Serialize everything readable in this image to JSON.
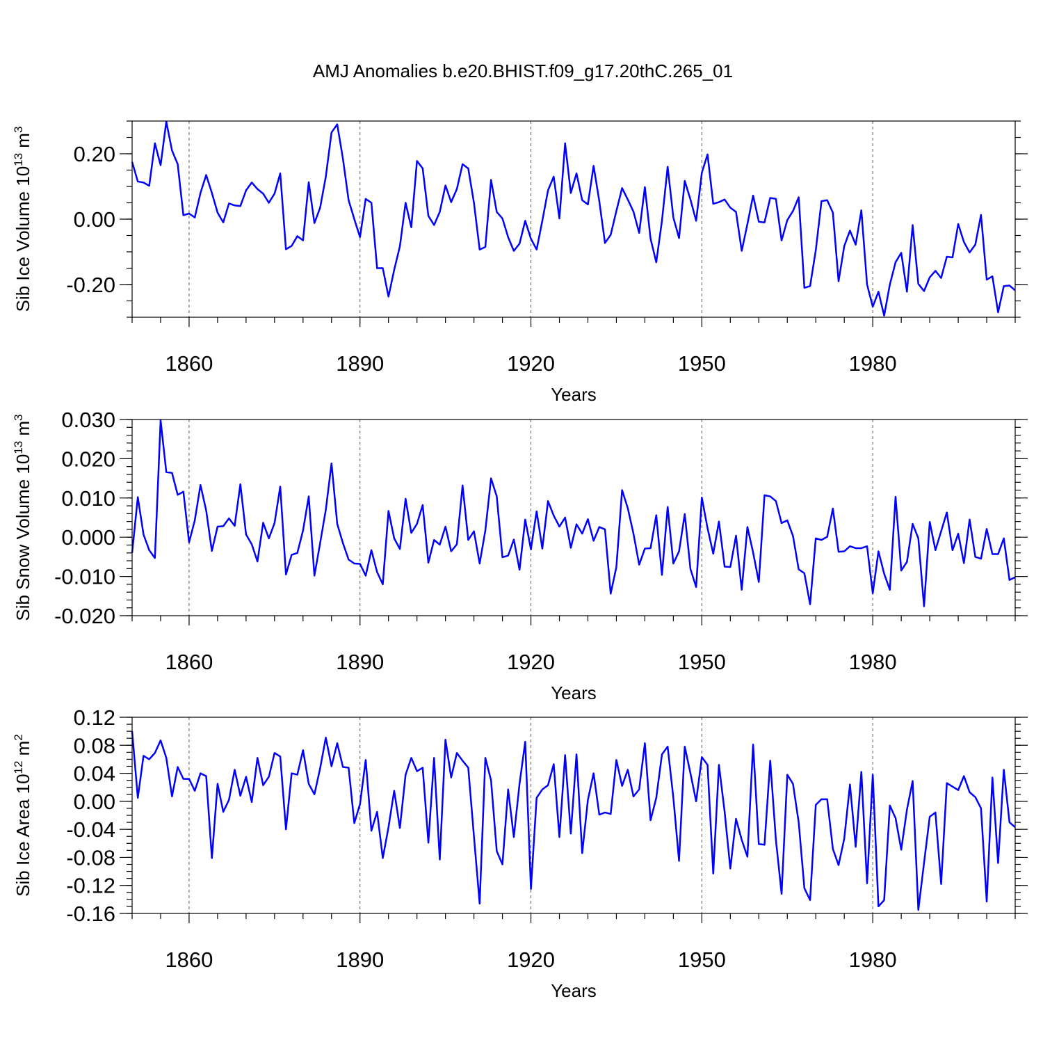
{
  "title": "AMJ Anomalies b.e20.BHIST.f09_g17.20thC.265_01",
  "colors": {
    "line": "#0000ff",
    "axis": "#000000",
    "grid": "#555555"
  },
  "chart_data": [
    {
      "type": "line",
      "ylabel_main": "Sib Ice Volume 10",
      "ylabel_sup": "13",
      "ylabel_unit": " m",
      "ylabel_unit_sup": "3",
      "xlabel": "Years",
      "xlim": [
        1850,
        2005
      ],
      "ylim": [
        -0.3,
        0.3
      ],
      "xticks": [
        1860,
        1890,
        1920,
        1950,
        1980
      ],
      "xtick_labels": [
        "1860",
        "1890",
        "1920",
        "1950",
        "1980"
      ],
      "yticks": [
        -0.2,
        0.0,
        0.2
      ],
      "ytick_labels": [
        "-0.20",
        "0.00",
        "0.20"
      ],
      "yminor_step": 0.05,
      "x_start": 1850,
      "values": [
        0.175,
        0.115,
        0.112,
        0.102,
        0.232,
        0.165,
        0.298,
        0.21,
        0.168,
        0.012,
        0.017,
        0.005,
        0.08,
        0.135,
        0.08,
        0.02,
        -0.01,
        0.048,
        0.042,
        0.04,
        0.088,
        0.112,
        0.092,
        0.078,
        0.05,
        0.078,
        0.14,
        -0.092,
        -0.082,
        -0.052,
        -0.065,
        0.113,
        -0.012,
        0.035,
        0.13,
        0.265,
        0.29,
        0.185,
        0.058,
        0.0,
        -0.055,
        0.062,
        0.05,
        -0.15,
        -0.15,
        -0.237,
        -0.155,
        -0.083,
        0.05,
        -0.025,
        0.178,
        0.155,
        0.01,
        -0.018,
        0.022,
        0.103,
        0.052,
        0.092,
        0.168,
        0.155,
        0.05,
        -0.093,
        -0.085,
        0.12,
        0.022,
        0.002,
        -0.055,
        -0.097,
        -0.075,
        -0.005,
        -0.06,
        -0.093,
        -0.005,
        0.088,
        0.13,
        0.002,
        0.232,
        0.08,
        0.14,
        0.058,
        0.045,
        0.163,
        0.055,
        -0.073,
        -0.048,
        0.025,
        0.095,
        0.06,
        0.023,
        -0.042,
        0.098,
        -0.06,
        -0.132,
        -0.005,
        0.16,
        0.005,
        -0.058,
        0.117,
        0.06,
        -0.005,
        0.142,
        0.198,
        0.047,
        0.052,
        0.06,
        0.035,
        0.022,
        -0.097,
        -0.015,
        0.072,
        -0.008,
        -0.01,
        0.065,
        0.062,
        -0.065,
        -0.003,
        0.025,
        0.067,
        -0.21,
        -0.205,
        -0.095,
        0.055,
        0.058,
        0.02,
        -0.19,
        -0.082,
        -0.035,
        -0.078,
        0.027,
        -0.2,
        -0.268,
        -0.222,
        -0.295,
        -0.2,
        -0.132,
        -0.103,
        -0.222,
        -0.018,
        -0.198,
        -0.22,
        -0.178,
        -0.158,
        -0.18,
        -0.115,
        -0.117,
        -0.015,
        -0.07,
        -0.102,
        -0.078,
        0.013,
        -0.185,
        -0.175,
        -0.285,
        -0.205,
        -0.203,
        -0.218
      ]
    },
    {
      "type": "line",
      "ylabel_main": "Sib Snow Volume 10",
      "ylabel_sup": "13",
      "ylabel_unit": " m",
      "ylabel_unit_sup": "3",
      "xlabel": "Years",
      "xlim": [
        1850,
        2005
      ],
      "ylim": [
        -0.02,
        0.03
      ],
      "xticks": [
        1860,
        1890,
        1920,
        1950,
        1980
      ],
      "xtick_labels": [
        "1860",
        "1890",
        "1920",
        "1950",
        "1980"
      ],
      "yticks": [
        -0.02,
        -0.01,
        0.0,
        0.01,
        0.02,
        0.03
      ],
      "ytick_labels": [
        "-0.020",
        "-0.010",
        "0.000",
        "0.010",
        "0.020",
        "0.030"
      ],
      "yminor_step": 0.002,
      "x_start": 1850,
      "values": [
        -0.004,
        0.0102,
        0.0007,
        -0.0033,
        -0.0053,
        0.0298,
        0.0166,
        0.0164,
        0.0108,
        0.0116,
        -0.0013,
        0.0043,
        0.0133,
        0.0068,
        -0.0035,
        0.0027,
        0.0028,
        0.0048,
        0.0029,
        0.0135,
        0.0007,
        -0.0018,
        -0.0062,
        0.0037,
        -0.0003,
        0.0036,
        0.0129,
        -0.0095,
        -0.0045,
        -0.004,
        0.0017,
        0.0104,
        -0.0098,
        -0.0015,
        0.007,
        0.0188,
        0.0034,
        -0.0015,
        -0.0057,
        -0.0067,
        -0.0068,
        -0.0098,
        -0.0033,
        -0.0089,
        -0.012,
        0.0067,
        -0.0003,
        -0.003,
        0.0098,
        0.0011,
        0.0034,
        0.0082,
        -0.0065,
        -0.0007,
        -0.0019,
        0.0027,
        -0.0036,
        -0.0018,
        0.0132,
        -0.0007,
        0.0015,
        -0.0067,
        0.0017,
        0.015,
        0.0104,
        -0.0051,
        -0.0047,
        -0.0006,
        -0.0083,
        0.0045,
        -0.0031,
        0.0066,
        -0.0029,
        0.0092,
        0.0055,
        0.0027,
        0.005,
        -0.0027,
        0.0033,
        0.0009,
        0.0046,
        -0.0009,
        0.0026,
        0.002,
        -0.0144,
        -0.0076,
        0.012,
        0.0074,
        0.0009,
        -0.007,
        -0.0029,
        -0.0028,
        0.0056,
        -0.0096,
        0.0077,
        -0.0067,
        -0.0036,
        0.0059,
        -0.0081,
        -0.0127,
        0.0101,
        0.0023,
        -0.0042,
        0.004,
        -0.0075,
        -0.0076,
        0.0004,
        -0.0134,
        0.0026,
        -0.0039,
        -0.0114,
        0.0107,
        0.0104,
        0.0092,
        0.0036,
        0.0043,
        0.0003,
        -0.0082,
        -0.0092,
        -0.0171,
        -0.0003,
        -0.0007,
        0.0001,
        0.0073,
        -0.0037,
        -0.0036,
        -0.0023,
        -0.0028,
        -0.0028,
        -0.0023,
        -0.0143,
        -0.0036,
        -0.0093,
        -0.0134,
        0.0103,
        -0.0085,
        -0.0063,
        0.0034,
        -0.0003,
        -0.0176,
        0.0039,
        -0.0033,
        0.0015,
        0.0063,
        -0.0033,
        0.0009,
        -0.0066,
        0.0045,
        -0.005,
        -0.0055,
        0.0021,
        -0.0043,
        -0.0043,
        -0.0003,
        -0.0109,
        -0.0102
      ]
    },
    {
      "type": "line",
      "ylabel_main": "Sib Ice Area 10",
      "ylabel_sup": "12",
      "ylabel_unit": " m",
      "ylabel_unit_sup": "2",
      "xlabel": "Years",
      "xlim": [
        1850,
        2005
      ],
      "ylim": [
        -0.16,
        0.12
      ],
      "xticks": [
        1860,
        1890,
        1920,
        1950,
        1980
      ],
      "xtick_labels": [
        "1860",
        "1890",
        "1920",
        "1950",
        "1980"
      ],
      "yticks": [
        -0.16,
        -0.12,
        -0.08,
        -0.04,
        0.0,
        0.04,
        0.08,
        0.12
      ],
      "ytick_labels": [
        "-0.16",
        "-0.12",
        "-0.08",
        "-0.04",
        "0.00",
        "0.04",
        "0.08",
        "0.12"
      ],
      "yminor_step": 0.01,
      "x_start": 1850,
      "values": [
        0.1,
        0.005,
        0.065,
        0.06,
        0.069,
        0.087,
        0.062,
        0.007,
        0.049,
        0.032,
        0.032,
        0.015,
        0.04,
        0.036,
        -0.081,
        0.025,
        -0.015,
        0.002,
        0.045,
        0.008,
        0.035,
        -0.001,
        0.062,
        0.023,
        0.035,
        0.069,
        0.064,
        -0.04,
        0.04,
        0.038,
        0.073,
        0.025,
        0.01,
        0.047,
        0.091,
        0.05,
        0.083,
        0.049,
        0.048,
        -0.031,
        -0.004,
        0.059,
        -0.042,
        -0.015,
        -0.081,
        -0.037,
        0.015,
        -0.038,
        0.038,
        0.062,
        0.043,
        0.048,
        -0.059,
        0.062,
        -0.083,
        0.088,
        0.034,
        0.069,
        0.058,
        0.048,
        -0.05,
        -0.146,
        0.062,
        0.03,
        -0.071,
        -0.09,
        0.017,
        -0.051,
        0.025,
        0.085,
        -0.125,
        0.005,
        0.017,
        0.023,
        0.053,
        -0.051,
        0.066,
        -0.046,
        0.067,
        -0.074,
        0.002,
        0.04,
        -0.019,
        -0.016,
        -0.018,
        0.059,
        0.022,
        0.045,
        0.007,
        0.017,
        0.083,
        -0.027,
        0.005,
        0.067,
        0.078,
        0.005,
        -0.085,
        0.078,
        0.04,
        0.0,
        0.063,
        0.052,
        -0.103,
        0.052,
        -0.015,
        -0.096,
        -0.025,
        -0.055,
        -0.079,
        0.081,
        -0.061,
        -0.062,
        0.058,
        -0.055,
        -0.132,
        0.038,
        0.025,
        -0.03,
        -0.124,
        -0.141,
        -0.005,
        0.003,
        0.003,
        -0.068,
        -0.091,
        -0.053,
        0.024,
        -0.065,
        0.042,
        -0.117,
        0.038,
        -0.15,
        -0.141,
        -0.006,
        -0.024,
        -0.069,
        -0.012,
        0.029,
        -0.155,
        -0.088,
        -0.022,
        -0.016,
        -0.118,
        0.026,
        0.021,
        0.016,
        0.036,
        0.013,
        0.006,
        -0.01,
        -0.143,
        0.034,
        -0.088,
        0.045,
        -0.03,
        -0.037
      ]
    }
  ]
}
